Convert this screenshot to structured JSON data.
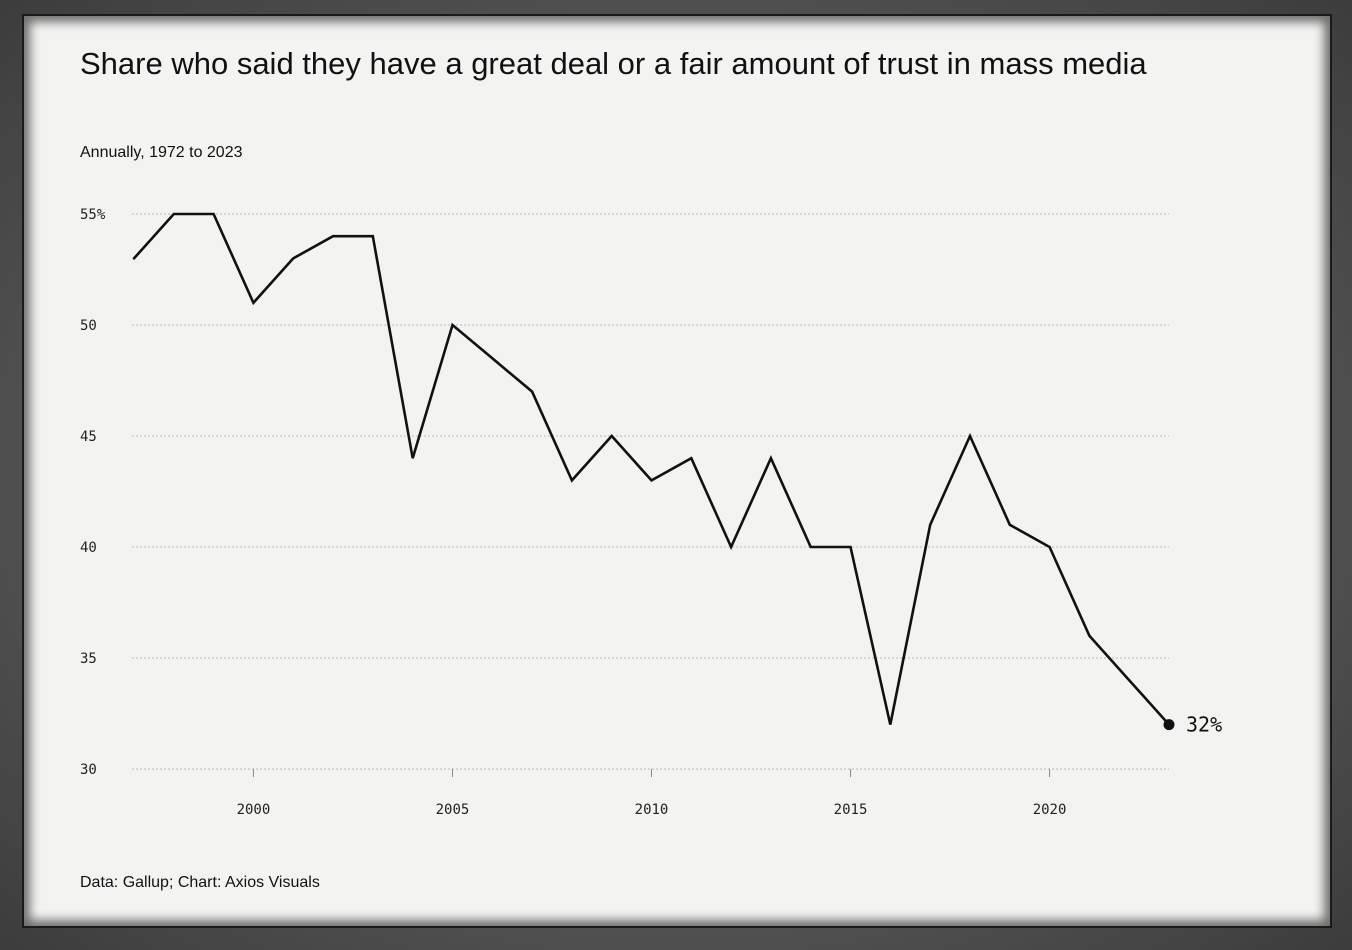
{
  "chart_data": {
    "type": "line",
    "title": "Share who said they have a great deal or a fair amount of trust in mass media",
    "subtitle": "Annually, 1972 to 2023",
    "source": "Data: Gallup; Chart: Axios Visuals",
    "xlabel": "",
    "ylabel": "",
    "xlim": [
      1997,
      2023
    ],
    "ylim": [
      30,
      55
    ],
    "yticks": [
      {
        "value": 55,
        "label": "55%"
      },
      {
        "value": 50,
        "label": "50"
      },
      {
        "value": 45,
        "label": "45"
      },
      {
        "value": 40,
        "label": "40"
      },
      {
        "value": 35,
        "label": "35"
      },
      {
        "value": 30,
        "label": "30"
      }
    ],
    "xticks": [
      {
        "value": 2000,
        "label": "2000"
      },
      {
        "value": 2005,
        "label": "2005"
      },
      {
        "value": 2010,
        "label": "2010"
      },
      {
        "value": 2015,
        "label": "2015"
      },
      {
        "value": 2020,
        "label": "2020"
      }
    ],
    "grid": true,
    "line_color": "#111111",
    "series": [
      {
        "x": [
          1997,
          1998,
          1999,
          2000,
          2001,
          2002,
          2003,
          2004,
          2005,
          2006,
          2007,
          2008,
          2009,
          2010,
          2011,
          2012,
          2013,
          2014,
          2015,
          2016,
          2017,
          2018,
          2019,
          2020,
          2021,
          2022,
          2023
        ],
        "values": [
          53,
          55,
          55,
          51,
          53,
          54,
          54,
          44,
          50,
          48.5,
          47,
          43,
          45,
          43,
          44,
          40,
          44,
          40,
          40,
          32,
          41,
          45,
          41,
          40,
          36,
          34,
          32
        ]
      }
    ],
    "end_label": "32%"
  }
}
